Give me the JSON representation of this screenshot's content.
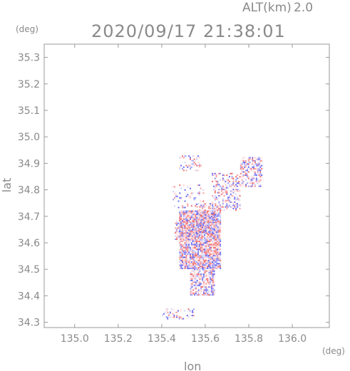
{
  "header": {
    "alt_label": "ALT(km)",
    "alt_value": "2.0",
    "timestamp": "2020/09/17 21:38:01"
  },
  "chart_data": {
    "type": "heatmap",
    "xlabel": "lon",
    "ylabel": "lat",
    "x_unit": "(deg)",
    "y_unit": "(deg)",
    "xlim": [
      134.86,
      136.17
    ],
    "ylim": [
      34.28,
      35.35
    ],
    "x_ticks": [
      "135.0",
      "135.2",
      "135.4",
      "135.6",
      "135.8",
      "136.0"
    ],
    "x_tick_values": [
      135.0,
      135.2,
      135.4,
      135.6,
      135.8,
      136.0
    ],
    "y_ticks": [
      "34.3",
      "34.4",
      "34.5",
      "34.6",
      "34.7",
      "34.8",
      "34.9",
      "35.0",
      "35.1",
      "35.2",
      "35.3"
    ],
    "y_tick_values": [
      34.3,
      34.4,
      34.5,
      34.6,
      34.7,
      34.8,
      34.9,
      35.0,
      35.1,
      35.2,
      35.3
    ],
    "grid": false,
    "colors": {
      "frame": "#9a9a9a",
      "positive": "#f07070",
      "negative": "#6a6af0",
      "neutral": "#e0e0ff"
    },
    "regions": [
      {
        "lon": [
          135.48,
          135.67
        ],
        "lat": [
          34.5,
          34.72
        ],
        "density": 0.9
      },
      {
        "lon": [
          135.53,
          135.64
        ],
        "lat": [
          34.4,
          34.52
        ],
        "density": 0.75
      },
      {
        "lon": [
          135.46,
          135.56
        ],
        "lat": [
          34.61,
          34.68
        ],
        "density": 0.55
      },
      {
        "lon": [
          135.76,
          135.86
        ],
        "lat": [
          34.81,
          34.92
        ],
        "density": 0.55
      },
      {
        "lon": [
          135.63,
          135.76
        ],
        "lat": [
          34.72,
          34.86
        ],
        "density": 0.35
      },
      {
        "lon": [
          135.48,
          135.58
        ],
        "lat": [
          34.87,
          34.93
        ],
        "density": 0.35
      },
      {
        "lon": [
          135.4,
          135.55
        ],
        "lat": [
          34.31,
          34.35
        ],
        "density": 0.3
      },
      {
        "lon": [
          135.45,
          135.6
        ],
        "lat": [
          34.73,
          34.82
        ],
        "density": 0.15
      },
      {
        "lon": [
          135.56,
          135.66
        ],
        "lat": [
          34.63,
          34.75
        ],
        "density": 0.4
      }
    ]
  }
}
